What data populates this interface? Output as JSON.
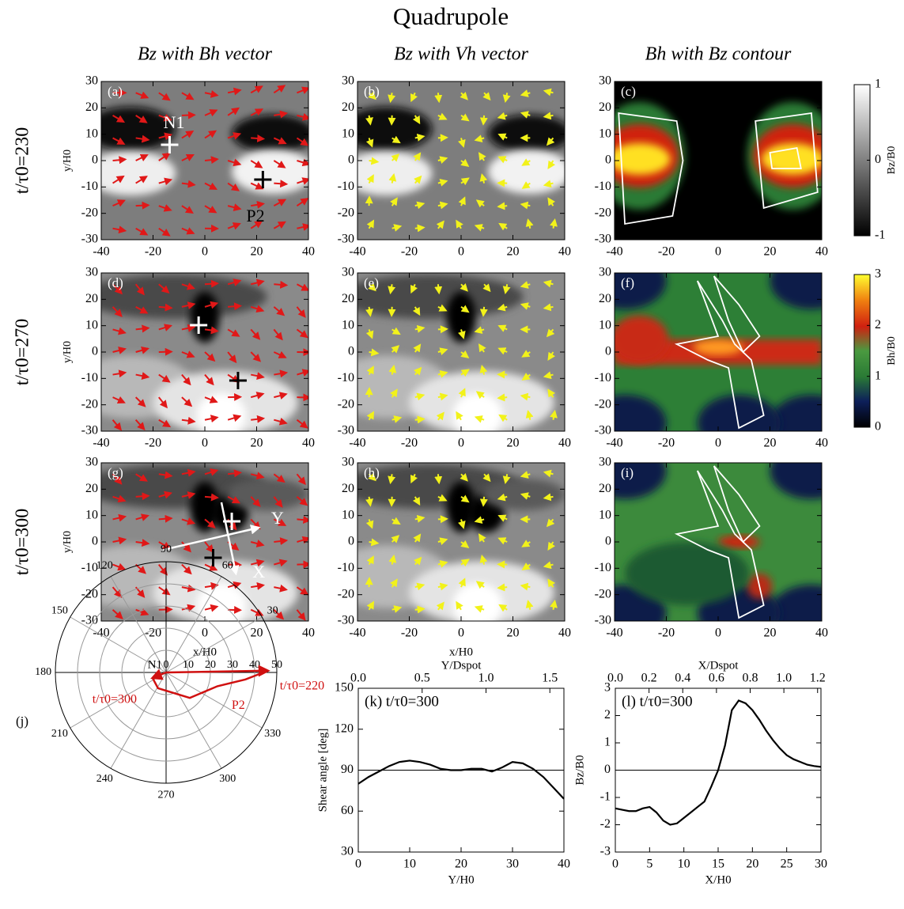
{
  "title": "Quadrupole",
  "column_titles": [
    "Bz with Bh vector",
    "Bz with Vh vector",
    "Bh with Bz contour"
  ],
  "row_labels": [
    "t/τ0=230",
    "t/τ0=270",
    "t/τ0=300"
  ],
  "colorbars": [
    {
      "label": "Bz/B0",
      "lim": [
        -1,
        1
      ],
      "ticks": [
        -1,
        0,
        1
      ]
    },
    {
      "label": "Bh/B0",
      "lim": [
        0,
        3
      ],
      "ticks": [
        0,
        1,
        2,
        3
      ]
    }
  ],
  "chart_data": [
    {
      "type": "map",
      "label": "(a)",
      "xlim": [
        -40,
        40
      ],
      "ylim": [
        -30,
        30
      ],
      "xticks": [
        -40,
        -20,
        0,
        20,
        40
      ],
      "yticks": [
        -30,
        -20,
        -10,
        0,
        10,
        20,
        30
      ],
      "ylabel": "y/H0",
      "annotations": [
        "N1",
        "P2"
      ]
    },
    {
      "type": "map",
      "label": "(b)",
      "xlim": [
        -40,
        40
      ],
      "ylim": [
        -30,
        30
      ],
      "xticks": [
        -40,
        -20,
        0,
        20,
        40
      ],
      "yticks": [
        -30,
        -20,
        -10,
        0,
        10,
        20,
        30
      ]
    },
    {
      "type": "map",
      "label": "(c)",
      "xlim": [
        -40,
        40
      ],
      "ylim": [
        -30,
        30
      ],
      "xticks": [
        -40,
        -20,
        0,
        20,
        40
      ],
      "yticks": [
        -30,
        -20,
        -10,
        0,
        10,
        20,
        30
      ]
    },
    {
      "type": "map",
      "label": "(d)",
      "xlim": [
        -40,
        40
      ],
      "ylim": [
        -30,
        30
      ],
      "xticks": [
        -40,
        -20,
        0,
        20,
        40
      ],
      "yticks": [
        -30,
        -20,
        -10,
        0,
        10,
        20,
        30
      ],
      "ylabel": "y/H0"
    },
    {
      "type": "map",
      "label": "(e)",
      "xlim": [
        -40,
        40
      ],
      "ylim": [
        -30,
        30
      ],
      "xticks": [
        -40,
        -20,
        0,
        20,
        40
      ],
      "yticks": [
        -30,
        -20,
        -10,
        0,
        10,
        20,
        30
      ]
    },
    {
      "type": "map",
      "label": "(f)",
      "xlim": [
        -40,
        40
      ],
      "ylim": [
        -30,
        30
      ],
      "xticks": [
        -40,
        -20,
        0,
        20,
        40
      ],
      "yticks": [
        -30,
        -20,
        -10,
        0,
        10,
        20,
        30
      ]
    },
    {
      "type": "map",
      "label": "(g)",
      "xlim": [
        -40,
        40
      ],
      "ylim": [
        -30,
        30
      ],
      "xticks": [
        -40,
        -20,
        0,
        20,
        40
      ],
      "yticks": [
        -30,
        -20,
        -10,
        0,
        10,
        20,
        30
      ],
      "ylabel": "y/H0",
      "xlabel": "x/H0",
      "annotations": [
        "Y",
        "X"
      ]
    },
    {
      "type": "map",
      "label": "(h)",
      "xlim": [
        -40,
        40
      ],
      "ylim": [
        -30,
        30
      ],
      "xticks": [
        -40,
        -20,
        0,
        20,
        40
      ],
      "yticks": [
        -30,
        -20,
        -10,
        0,
        10,
        20,
        30
      ],
      "xlabel": "x/H0"
    },
    {
      "type": "map",
      "label": "(i)",
      "xlim": [
        -40,
        40
      ],
      "ylim": [
        -30,
        30
      ],
      "xticks": [
        -40,
        -20,
        0,
        20,
        40
      ],
      "yticks": [
        -30,
        -20,
        -10,
        0,
        10,
        20,
        30
      ]
    },
    {
      "type": "polar",
      "label": "(j)",
      "rlim": [
        0,
        50
      ],
      "rticks": [
        0,
        10,
        20,
        30,
        40,
        50
      ],
      "thetaticks": [
        30,
        60,
        90,
        120,
        150,
        180,
        210,
        240,
        270,
        300,
        330
      ],
      "center_label": "N1",
      "series": [
        {
          "name": "P2",
          "color": "#d01010",
          "theta": [
            202,
            243,
            313,
            345,
            355,
            1
          ],
          "r": [
            6.6,
            8,
            15.7,
            24,
            36,
            46
          ]
        }
      ],
      "arrows": [
        {
          "label": "t/τ0=300",
          "theta": 202,
          "r": 6.6
        },
        {
          "label": "t/τ0=220",
          "theta": 1,
          "r": 46
        }
      ]
    },
    {
      "type": "line",
      "label": "(k) t/τ0=300",
      "xlabel": "Y/H0",
      "ylabel": "Shear angle [deg]",
      "x": [
        0,
        2,
        4,
        6,
        8,
        10,
        12,
        14,
        16,
        18,
        20,
        22,
        24,
        26,
        28,
        30,
        32,
        34,
        36,
        38,
        40
      ],
      "series": [
        {
          "color": "#000000",
          "values": [
            80,
            85,
            89,
            93,
            96,
            97,
            96,
            94,
            91,
            90,
            90,
            91,
            91,
            89,
            92,
            96,
            95,
            91,
            85,
            77,
            69
          ]
        }
      ],
      "xlim": [
        0,
        40
      ],
      "ylim": [
        30,
        150
      ],
      "xticks": [
        0,
        10,
        20,
        30,
        40
      ],
      "yticks": [
        30,
        60,
        90,
        120,
        150
      ],
      "hline": 90,
      "x2label": "Y/Dspot",
      "x2lim": [
        0,
        1.61
      ],
      "x2ticks": [
        {
          "value": 0,
          "label": "0.0"
        },
        0.5,
        {
          "value": 1,
          "label": "1.0"
        },
        1.5
      ]
    },
    {
      "type": "line",
      "label": "(l) t/τ0=300",
      "xlabel": "X/H0",
      "ylabel": "Bz/B0",
      "x": [
        0,
        1,
        2,
        3,
        4,
        5,
        6,
        7,
        8,
        9,
        10,
        11,
        12,
        13,
        14,
        15,
        16,
        17,
        18,
        19,
        20,
        21,
        22,
        23,
        24,
        25,
        26,
        27,
        28,
        29,
        30
      ],
      "series": [
        {
          "color": "#000000",
          "values": [
            -1.4,
            -1.45,
            -1.5,
            -1.5,
            -1.4,
            -1.35,
            -1.55,
            -1.85,
            -2.0,
            -1.95,
            -1.75,
            -1.55,
            -1.35,
            -1.15,
            -0.6,
            0.0,
            0.9,
            2.2,
            2.55,
            2.45,
            2.2,
            1.85,
            1.45,
            1.1,
            0.8,
            0.55,
            0.4,
            0.3,
            0.2,
            0.15,
            0.12
          ]
        }
      ],
      "xlim": [
        0,
        30
      ],
      "ylim": [
        -3,
        3
      ],
      "xticks": [
        0,
        5,
        10,
        15,
        20,
        25,
        30
      ],
      "yticks": [
        -3,
        -2,
        -1,
        0,
        1,
        2,
        3
      ],
      "hline": 0,
      "x2label": "X/Dspot",
      "x2lim": [
        0,
        1.22
      ],
      "x2ticks": [
        {
          "value": 0,
          "label": "0.0"
        },
        0.2,
        0.4,
        0.6,
        0.8,
        {
          "value": 1,
          "label": "1.0"
        },
        1.2
      ]
    }
  ]
}
